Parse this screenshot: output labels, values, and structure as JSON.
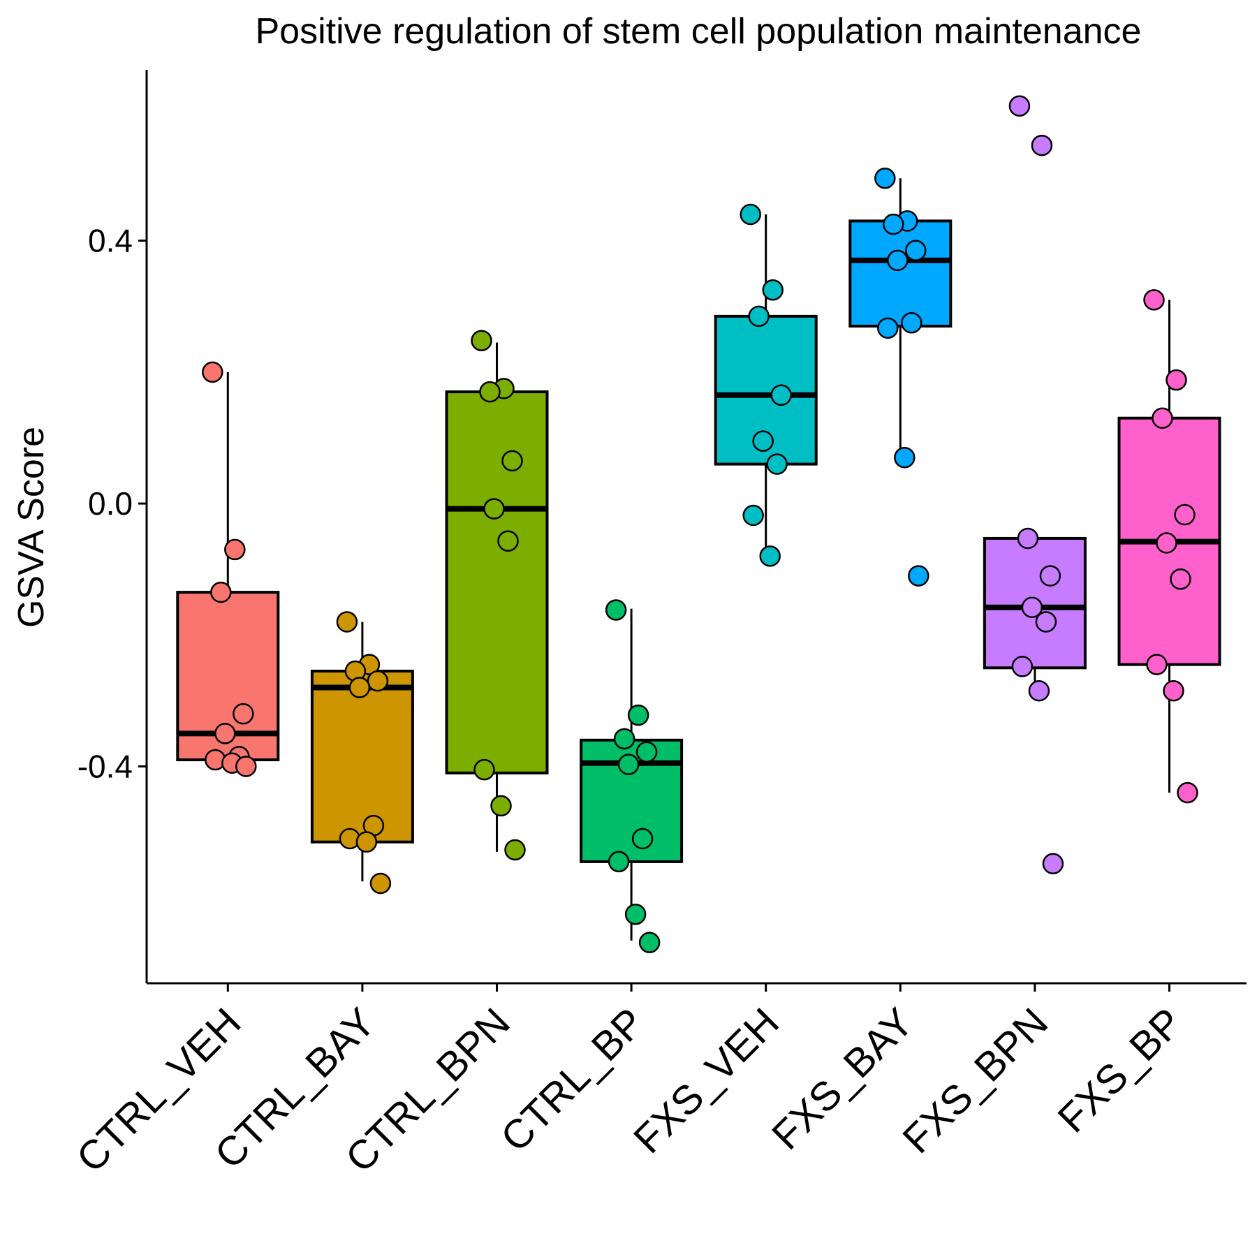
{
  "chart_data": {
    "type": "box",
    "title": "Positive regulation of stem cell population maintenance",
    "xlabel": "",
    "ylabel": "GSVA Score",
    "ylim": [
      -0.73,
      0.66
    ],
    "yticks": [
      -0.4,
      0.0,
      0.4
    ],
    "ytick_labels": [
      "-0.4",
      "0.0",
      "0.4"
    ],
    "grid": false,
    "legend": "none",
    "categories": [
      "CTRL_VEH",
      "CTRL_BAY",
      "CTRL_BPN",
      "CTRL_BP",
      "FXS_VEH",
      "FXS_BAY",
      "FXS_BPN",
      "FXS_BP"
    ],
    "groups": [
      {
        "category": "CTRL_VEH",
        "color": "#F8766D",
        "box": {
          "q1": -0.39,
          "median": -0.35,
          "q3": -0.135,
          "whisker_low": -0.4,
          "whisker_high": 0.2
        },
        "points": [
          0.2,
          -0.07,
          -0.135,
          -0.32,
          -0.35,
          -0.385,
          -0.39,
          -0.395,
          -0.4
        ]
      },
      {
        "category": "CTRL_BAY",
        "color": "#CD9600",
        "box": {
          "q1": -0.515,
          "median": -0.28,
          "q3": -0.255,
          "whisker_low": -0.575,
          "whisker_high": -0.18
        },
        "points": [
          -0.18,
          -0.245,
          -0.255,
          -0.27,
          -0.28,
          -0.49,
          -0.51,
          -0.515,
          -0.578
        ]
      },
      {
        "category": "CTRL_BPN",
        "color": "#7CAE00",
        "box": {
          "q1": -0.41,
          "median": -0.008,
          "q3": 0.17,
          "whisker_low": -0.53,
          "whisker_high": 0.245
        },
        "points": [
          0.248,
          0.175,
          0.17,
          0.065,
          -0.008,
          -0.057,
          -0.405,
          -0.46,
          -0.527
        ]
      },
      {
        "category": "CTRL_BP",
        "color": "#00BE67",
        "box": {
          "q1": -0.545,
          "median": -0.395,
          "q3": -0.36,
          "whisker_low": -0.665,
          "whisker_high": -0.16
        },
        "points": [
          -0.162,
          -0.322,
          -0.358,
          -0.378,
          -0.397,
          -0.51,
          -0.545,
          -0.625,
          -0.668
        ]
      },
      {
        "category": "FXS_VEH",
        "color": "#00BFC4",
        "box": {
          "q1": 0.06,
          "median": 0.165,
          "q3": 0.285,
          "whisker_low": -0.08,
          "whisker_high": 0.44
        },
        "points": [
          0.44,
          0.325,
          0.285,
          0.165,
          0.095,
          0.06,
          -0.018,
          -0.08
        ]
      },
      {
        "category": "FXS_BAY",
        "color": "#00A9FF",
        "box": {
          "q1": 0.27,
          "median": 0.37,
          "q3": 0.43,
          "whisker_low": 0.07,
          "whisker_high": 0.495
        },
        "points": [
          0.495,
          0.43,
          0.425,
          0.385,
          0.37,
          0.275,
          0.267,
          0.07,
          -0.11
        ]
      },
      {
        "category": "FXS_BPN",
        "color": "#C77CFF",
        "box": {
          "q1": -0.25,
          "median": -0.158,
          "q3": -0.053,
          "whisker_low": -0.285,
          "whisker_high": -0.053
        },
        "points": [
          0.605,
          0.545,
          -0.053,
          -0.11,
          -0.158,
          -0.18,
          -0.248,
          -0.285,
          -0.548
        ]
      },
      {
        "category": "FXS_BP",
        "color": "#FF61CC",
        "box": {
          "q1": -0.245,
          "median": -0.058,
          "q3": 0.13,
          "whisker_low": -0.44,
          "whisker_high": 0.31
        },
        "points": [
          0.31,
          0.188,
          0.13,
          -0.017,
          -0.06,
          -0.115,
          -0.245,
          -0.285,
          -0.44
        ]
      }
    ]
  }
}
